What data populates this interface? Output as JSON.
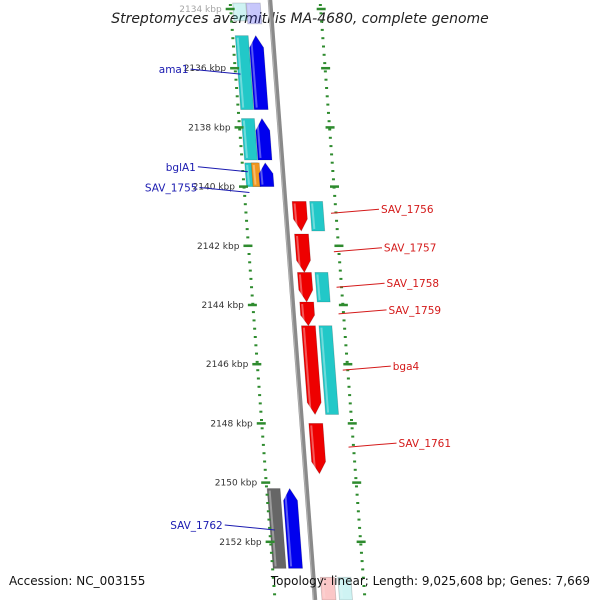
{
  "title": "Streptomyces avermitilis MA-4680, complete genome",
  "footer": {
    "accession": "Accession: NC_003155",
    "topology": "Topology: linear; Length: 9,025,608 bp; Genes: 7,669"
  },
  "colors": {
    "forward_gene": "#0000ee",
    "reverse_gene": "#ee0000",
    "protein_feature": "#22c8c8",
    "highlight_feature": "#f0961e",
    "hypothetical_gene": "#666666",
    "forward_label": "#1a1ab0",
    "reverse_label": "#d41a1a",
    "backbone": "#8a8a8a",
    "tick_marks": "#2e8b2e"
  },
  "scale": {
    "unit": "kbp",
    "tick_labels": [
      "2134 kbp",
      "2136 kbp",
      "2138 kbp",
      "2140 kbp",
      "2142 kbp",
      "2144 kbp",
      "2146 kbp",
      "2148 kbp",
      "2150 kbp",
      "2152 kbp"
    ]
  },
  "genes": [
    {
      "strand": "forward",
      "start_kbp": 2133.6,
      "end_kbp": 2134.5,
      "kind": "gene",
      "partial": true
    },
    {
      "strand": "forward",
      "start_kbp": 2134.9,
      "end_kbp": 2137.4,
      "kind": "gene"
    },
    {
      "strand": "forward",
      "start_kbp": 2137.7,
      "end_kbp": 2139.1,
      "kind": "gene"
    },
    {
      "strand": "forward",
      "start_kbp": 2139.2,
      "end_kbp": 2140.0,
      "kind": "gene"
    },
    {
      "strand": "reverse",
      "start_kbp": 2140.5,
      "end_kbp": 2141.5,
      "kind": "gene"
    },
    {
      "strand": "reverse",
      "start_kbp": 2141.6,
      "end_kbp": 2142.9,
      "kind": "gene"
    },
    {
      "strand": "reverse",
      "start_kbp": 2142.9,
      "end_kbp": 2143.9,
      "kind": "gene"
    },
    {
      "strand": "reverse",
      "start_kbp": 2143.9,
      "end_kbp": 2144.7,
      "kind": "gene"
    },
    {
      "strand": "reverse",
      "start_kbp": 2144.7,
      "end_kbp": 2147.7,
      "kind": "gene"
    },
    {
      "strand": "reverse",
      "start_kbp": 2148.0,
      "end_kbp": 2149.7,
      "kind": "gene"
    },
    {
      "strand": "forward",
      "start_kbp": 2150.2,
      "end_kbp": 2152.9,
      "kind": "hypothetical"
    },
    {
      "strand": "forward",
      "start_kbp": 2150.2,
      "end_kbp": 2152.9,
      "kind": "gene"
    },
    {
      "strand": "reverse",
      "start_kbp": 2153.2,
      "end_kbp": 2154.0,
      "kind": "gene",
      "partial": true
    }
  ],
  "features": [
    {
      "strand": "forward",
      "start_kbp": 2133.6,
      "end_kbp": 2134.4,
      "kind": "protein",
      "partial": true
    },
    {
      "strand": "forward",
      "start_kbp": 2134.9,
      "end_kbp": 2137.4,
      "kind": "protein"
    },
    {
      "strand": "forward",
      "start_kbp": 2137.7,
      "end_kbp": 2139.1,
      "kind": "protein"
    },
    {
      "strand": "forward",
      "start_kbp": 2139.2,
      "end_kbp": 2140.0,
      "kind": "protein"
    },
    {
      "strand": "forward",
      "start_kbp": 2139.2,
      "end_kbp": 2140.0,
      "kind": "highlight"
    },
    {
      "strand": "reverse",
      "start_kbp": 2140.5,
      "end_kbp": 2141.5,
      "kind": "protein"
    },
    {
      "strand": "reverse",
      "start_kbp": 2142.9,
      "end_kbp": 2143.9,
      "kind": "protein"
    },
    {
      "strand": "reverse",
      "start_kbp": 2144.7,
      "end_kbp": 2147.7,
      "kind": "protein"
    },
    {
      "strand": "reverse",
      "start_kbp": 2153.2,
      "end_kbp": 2154.0,
      "kind": "protein",
      "partial": true
    }
  ],
  "labels": [
    {
      "text": "ama1",
      "strand": "forward",
      "kbp": 2136.2
    },
    {
      "text": "bglA1",
      "strand": "forward",
      "kbp": 2139.5
    },
    {
      "text": "SAV_1755",
      "strand": "forward",
      "kbp": 2140.2
    },
    {
      "text": "SAV_1756",
      "strand": "reverse",
      "kbp": 2140.9
    },
    {
      "text": "SAV_1757",
      "strand": "reverse",
      "kbp": 2142.2
    },
    {
      "text": "SAV_1758",
      "strand": "reverse",
      "kbp": 2143.4
    },
    {
      "text": "SAV_1759",
      "strand": "reverse",
      "kbp": 2144.3
    },
    {
      "text": "bga4",
      "strand": "reverse",
      "kbp": 2146.2
    },
    {
      "text": "SAV_1761",
      "strand": "reverse",
      "kbp": 2148.8
    },
    {
      "text": "SAV_1762",
      "strand": "forward",
      "kbp": 2151.6
    }
  ]
}
